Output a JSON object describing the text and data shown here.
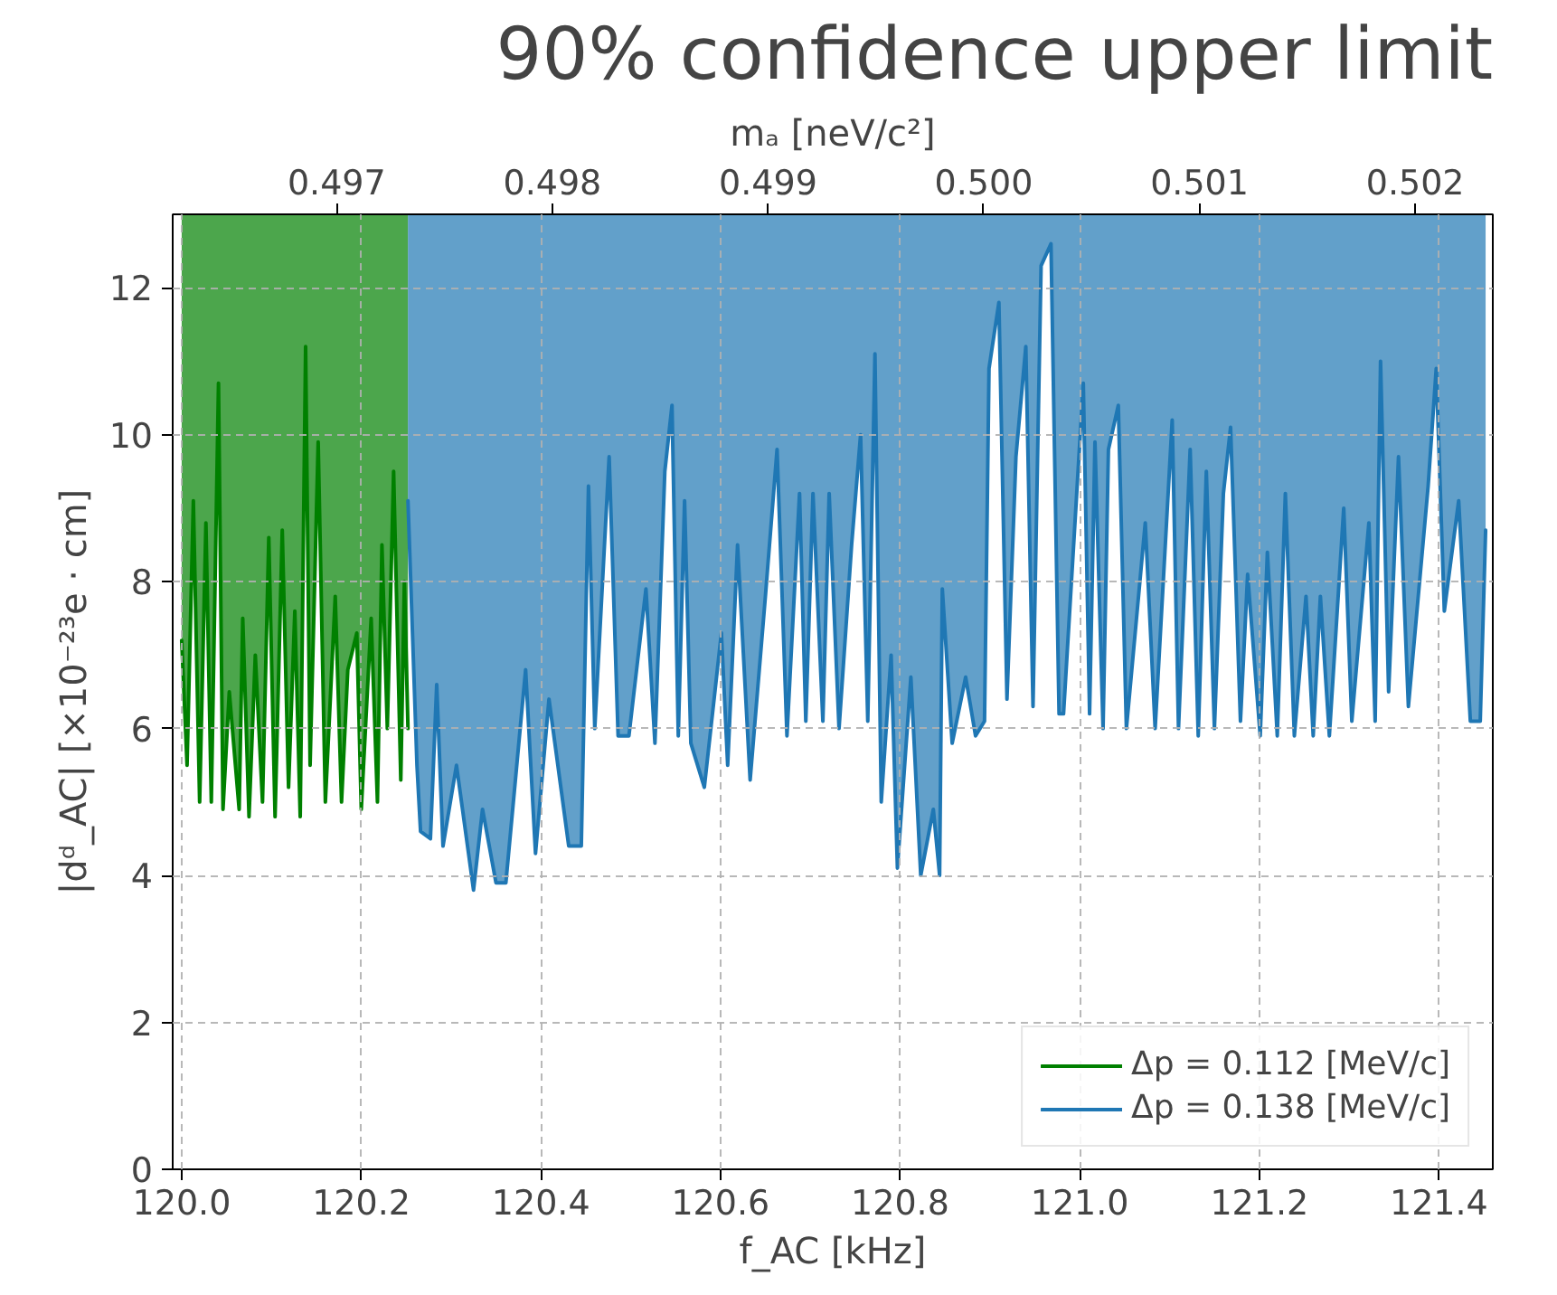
{
  "chart_data": {
    "type": "line",
    "title": "90% confidence upper limit",
    "xlabel": "f_AC [kHz]",
    "ylabel": "|dᵈ_AC| [×10⁻²³e · cm]",
    "x2label": "mₐ [neV/c²]",
    "xlim": [
      119.99,
      121.46
    ],
    "ylim": [
      0,
      13
    ],
    "x2lim": [
      0.49624,
      0.50236
    ],
    "xticks": [
      {
        "value": 120,
        "label": "120.0"
      },
      {
        "value": 120.2,
        "label": "120.2"
      },
      {
        "value": 120.4,
        "label": "120.4"
      },
      {
        "value": 120.6,
        "label": "120.6"
      },
      {
        "value": 120.8,
        "label": "120.8"
      },
      {
        "value": 121,
        "label": "121.0"
      },
      {
        "value": 121.2,
        "label": "121.2"
      },
      {
        "value": 121.4,
        "label": "121.4"
      }
    ],
    "yticks": [
      0,
      2,
      4,
      6,
      8,
      10,
      12
    ],
    "x2ticks": [
      0.497,
      0.498,
      0.499,
      {
        "value": 0.5,
        "label": "0.500"
      },
      0.501,
      0.502
    ],
    "grid": true,
    "legend": "bottom right",
    "line_style": "solid",
    "series": [
      {
        "name": "Δp = 0.112 [MeV/c]",
        "color": "#008000",
        "x": [
          120.0,
          120.006,
          120.013,
          120.02,
          120.027,
          120.033,
          120.041,
          120.046,
          120.053,
          120.064,
          120.068,
          120.075,
          120.082,
          120.09,
          120.097,
          120.104,
          120.112,
          120.119,
          120.126,
          120.132,
          120.138,
          120.143,
          120.152,
          120.16,
          120.171,
          120.178,
          120.185,
          120.195,
          120.2,
          120.211,
          120.218,
          120.223,
          120.229,
          120.236,
          120.244,
          120.248,
          120.252
        ],
        "values": [
          7.2,
          5.5,
          9.1,
          5.0,
          8.8,
          5.0,
          10.7,
          4.9,
          6.5,
          4.9,
          7.5,
          4.8,
          7.0,
          5.0,
          8.6,
          4.8,
          8.7,
          5.2,
          7.6,
          4.8,
          11.2,
          5.5,
          9.9,
          5.0,
          7.8,
          5.0,
          6.8,
          7.3,
          4.9,
          7.5,
          5.0,
          8.5,
          6.0,
          9.5,
          5.3,
          8.0,
          6.0
        ],
        "lower": [
          7.2,
          5.5,
          9.1,
          5.0,
          8.8,
          5.0,
          10.7,
          4.9,
          6.5,
          4.9,
          7.5,
          4.8,
          7.0,
          5.0,
          8.6,
          4.8,
          8.7,
          5.2,
          7.6,
          4.8,
          11.2,
          5.5,
          9.9,
          5.0,
          7.8,
          5.0,
          6.8,
          7.3,
          4.9,
          7.5,
          5.0,
          8.5,
          6.0,
          9.5,
          5.3,
          8.0,
          6.0
        ],
        "upper": [
          13,
          13,
          13,
          13,
          13,
          13,
          13,
          13,
          13,
          13,
          13,
          13,
          13,
          13,
          13,
          13,
          13,
          13,
          13,
          13,
          13,
          13,
          13,
          13,
          13,
          13,
          13,
          13,
          13,
          13,
          13,
          13,
          13,
          13,
          13,
          13,
          13
        ]
      },
      {
        "name": "Δp = 0.138 [MeV/c]",
        "color": "#1f77b4",
        "x": [
          120.252,
          120.262,
          120.266,
          120.277,
          120.284,
          120.291,
          120.306,
          120.325,
          120.335,
          120.35,
          120.361,
          120.383,
          120.394,
          120.409,
          120.431,
          120.445,
          120.453,
          120.46,
          120.476,
          120.486,
          120.498,
          120.517,
          120.527,
          120.538,
          120.546,
          120.553,
          120.56,
          120.567,
          120.582,
          120.601,
          120.608,
          120.619,
          120.633,
          120.65,
          120.663,
          120.674,
          120.688,
          120.695,
          120.703,
          120.714,
          120.721,
          120.732,
          120.746,
          120.756,
          120.764,
          120.772,
          120.779,
          120.79,
          120.797,
          120.812,
          120.823,
          120.837,
          120.844,
          120.847,
          120.858,
          120.873,
          120.884,
          120.894,
          120.899,
          120.91,
          120.919,
          120.929,
          120.94,
          120.948,
          120.957,
          120.968,
          120.977,
          120.982,
          121.004,
          121.011,
          121.017,
          121.026,
          121.032,
          121.043,
          121.052,
          121.073,
          121.084,
          121.103,
          121.11,
          121.123,
          121.132,
          121.141,
          121.15,
          121.16,
          121.168,
          121.179,
          121.187,
          121.201,
          121.209,
          121.22,
          121.229,
          121.239,
          121.252,
          121.26,
          121.268,
          121.278,
          121.294,
          121.303,
          121.322,
          121.329,
          121.335,
          121.344,
          121.355,
          121.366,
          121.388,
          121.397,
          121.406,
          121.422,
          121.435,
          121.446,
          121.452
        ],
        "values": [
          9.1,
          5.5,
          4.6,
          4.5,
          6.6,
          4.4,
          5.5,
          3.8,
          4.9,
          3.9,
          3.9,
          6.8,
          4.3,
          6.4,
          4.4,
          4.4,
          9.3,
          6.0,
          9.7,
          5.9,
          5.9,
          7.9,
          5.8,
          9.5,
          10.4,
          5.9,
          9.1,
          5.8,
          5.2,
          7.3,
          5.5,
          8.5,
          5.3,
          7.8,
          9.8,
          5.9,
          9.2,
          6.1,
          9.2,
          6.1,
          9.2,
          6.0,
          8.5,
          10.0,
          6.1,
          11.1,
          5.0,
          7.0,
          4.1,
          6.7,
          4.0,
          4.9,
          4.0,
          7.9,
          5.8,
          6.7,
          5.9,
          6.1,
          10.9,
          11.8,
          6.4,
          9.7,
          11.2,
          6.3,
          12.3,
          12.6,
          6.2,
          6.2,
          10.7,
          6.2,
          9.9,
          6.0,
          9.8,
          10.4,
          6.0,
          8.8,
          6.0,
          10.2,
          6.0,
          9.8,
          5.9,
          9.5,
          6.0,
          9.2,
          10.1,
          6.1,
          8.1,
          5.9,
          8.4,
          5.9,
          9.2,
          5.9,
          7.8,
          5.9,
          7.8,
          5.9,
          9.0,
          6.1,
          8.8,
          6.1,
          11.0,
          6.5,
          9.7,
          6.3,
          9.3,
          10.9,
          7.6,
          9.1,
          6.1,
          6.1,
          8.7
        ],
        "lower": [
          9.1,
          5.5,
          4.6,
          4.5,
          6.6,
          4.4,
          5.5,
          3.8,
          4.9,
          3.9,
          3.9,
          6.8,
          4.3,
          6.4,
          4.4,
          4.4,
          9.3,
          6.0,
          9.7,
          5.9,
          5.9,
          7.9,
          5.8,
          9.5,
          10.4,
          5.9,
          9.1,
          5.8,
          5.2,
          7.3,
          5.5,
          8.5,
          5.3,
          7.8,
          9.8,
          5.9,
          9.2,
          6.1,
          9.2,
          6.1,
          9.2,
          6.0,
          8.5,
          10.0,
          6.1,
          11.1,
          5.0,
          7.0,
          4.1,
          6.7,
          4.0,
          4.9,
          4.0,
          7.9,
          5.8,
          6.7,
          5.9,
          6.1,
          10.9,
          11.8,
          6.4,
          9.7,
          11.2,
          6.3,
          12.3,
          12.6,
          6.2,
          6.2,
          10.7,
          6.2,
          9.9,
          6.0,
          9.8,
          10.4,
          6.0,
          8.8,
          6.0,
          10.2,
          6.0,
          9.8,
          5.9,
          9.5,
          6.0,
          9.2,
          10.1,
          6.1,
          8.1,
          5.9,
          8.4,
          5.9,
          9.2,
          5.9,
          7.8,
          5.9,
          7.8,
          5.9,
          9.0,
          6.1,
          8.8,
          6.1,
          11.0,
          6.5,
          9.7,
          6.3,
          9.3,
          10.9,
          7.6,
          9.1,
          6.1,
          6.1,
          8.7
        ],
        "upper": [
          13,
          13,
          13,
          13,
          13,
          13,
          13,
          13,
          13,
          13,
          13,
          13,
          13,
          13,
          13,
          13,
          13,
          13,
          13,
          13,
          13,
          13,
          13,
          13,
          13,
          13,
          13,
          13,
          13,
          13,
          13,
          13,
          13,
          13,
          13,
          13,
          13,
          13,
          13,
          13,
          13,
          13,
          13,
          13,
          13,
          13,
          13,
          13,
          13,
          13,
          13,
          13,
          13,
          13,
          13,
          13,
          13,
          13,
          13,
          13,
          13,
          13,
          13,
          13,
          13,
          13,
          13,
          13,
          13,
          13,
          13,
          13,
          13,
          13,
          13,
          13,
          13,
          13,
          13,
          13,
          13,
          13,
          13,
          13,
          13,
          13,
          13,
          13,
          13,
          13,
          13,
          13,
          13,
          13,
          13,
          13,
          13,
          13,
          13,
          13,
          13,
          13,
          13,
          13,
          13,
          13,
          13,
          13,
          13,
          13,
          13
        ]
      }
    ]
  }
}
